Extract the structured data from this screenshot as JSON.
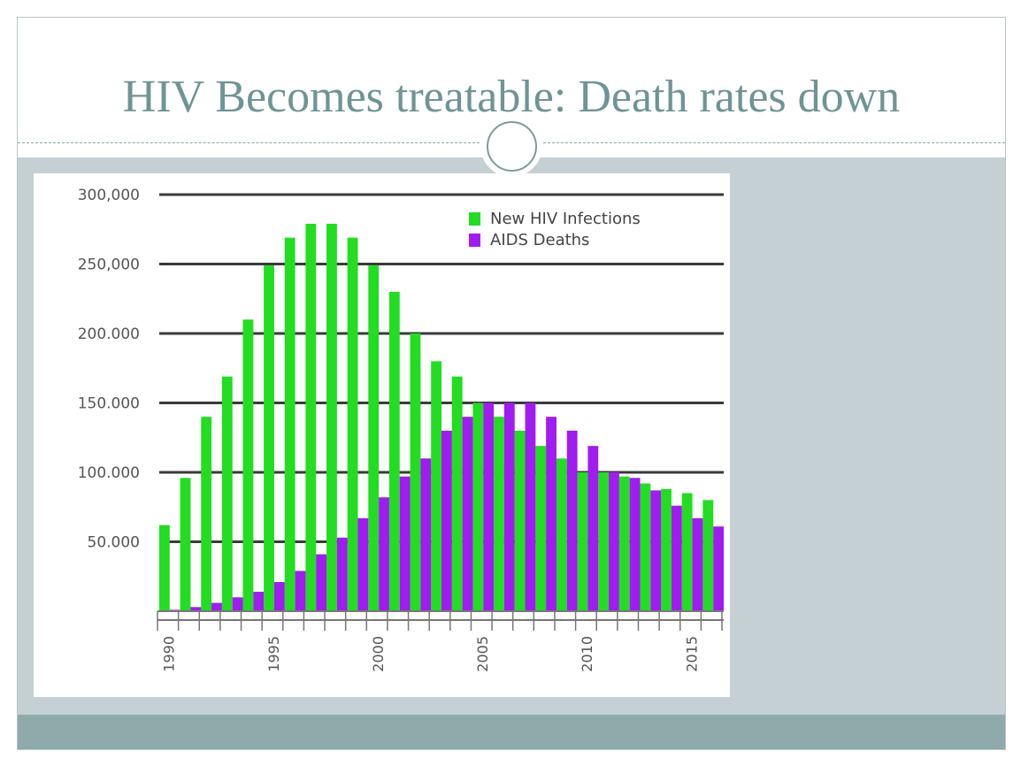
{
  "slide": {
    "title": "HIV Becomes treatable: Death rates down"
  },
  "colors": {
    "title": "#6f9494",
    "background": "#c4d0d4",
    "footer": "#8faaab",
    "new_infections": "#22dd22",
    "aids_deaths": "#a01cf0",
    "gridline": "#3a3a3a"
  },
  "chart_data": {
    "type": "bar",
    "title": "",
    "xlabel": "",
    "ylabel": "",
    "ylim": [
      0,
      300000
    ],
    "y_ticks": [
      50000,
      100000,
      150000,
      200000,
      250000,
      300000
    ],
    "y_tick_labels": [
      "50.000",
      "100.000",
      "150.000",
      "200.000",
      "250,000",
      "300,000"
    ],
    "x_tick_labels": [
      "1990",
      "1995",
      "2000",
      "2005",
      "2010",
      "2015"
    ],
    "x_tick_years": [
      1990,
      1995,
      2000,
      2005,
      2010,
      2015
    ],
    "categories": [
      1990,
      1991,
      1992,
      1993,
      1994,
      1995,
      1996,
      1997,
      1998,
      1999,
      2000,
      2001,
      2002,
      2003,
      2004,
      2005,
      2006,
      2007,
      2008,
      2009,
      2010,
      2011,
      2012,
      2013,
      2014,
      2015,
      2016
    ],
    "series": [
      {
        "name": "New HIV Infections",
        "values": [
          62000,
          96000,
          140000,
          169000,
          210000,
          249000,
          269000,
          279000,
          279000,
          269000,
          249000,
          230000,
          200000,
          180000,
          169000,
          150000,
          140000,
          130000,
          119000,
          110000,
          100000,
          100000,
          97000,
          92000,
          88000,
          85000,
          80000
        ]
      },
      {
        "name": "AIDS Deaths",
        "values": [
          1000,
          3000,
          6000,
          10000,
          14000,
          21000,
          29000,
          41000,
          53000,
          67000,
          82000,
          97000,
          110000,
          130000,
          140000,
          150000,
          150000,
          150000,
          140000,
          130000,
          119000,
          100000,
          96000,
          87000,
          76000,
          67000,
          61000
        ]
      }
    ],
    "legend_position": "top-right",
    "grid": true
  }
}
